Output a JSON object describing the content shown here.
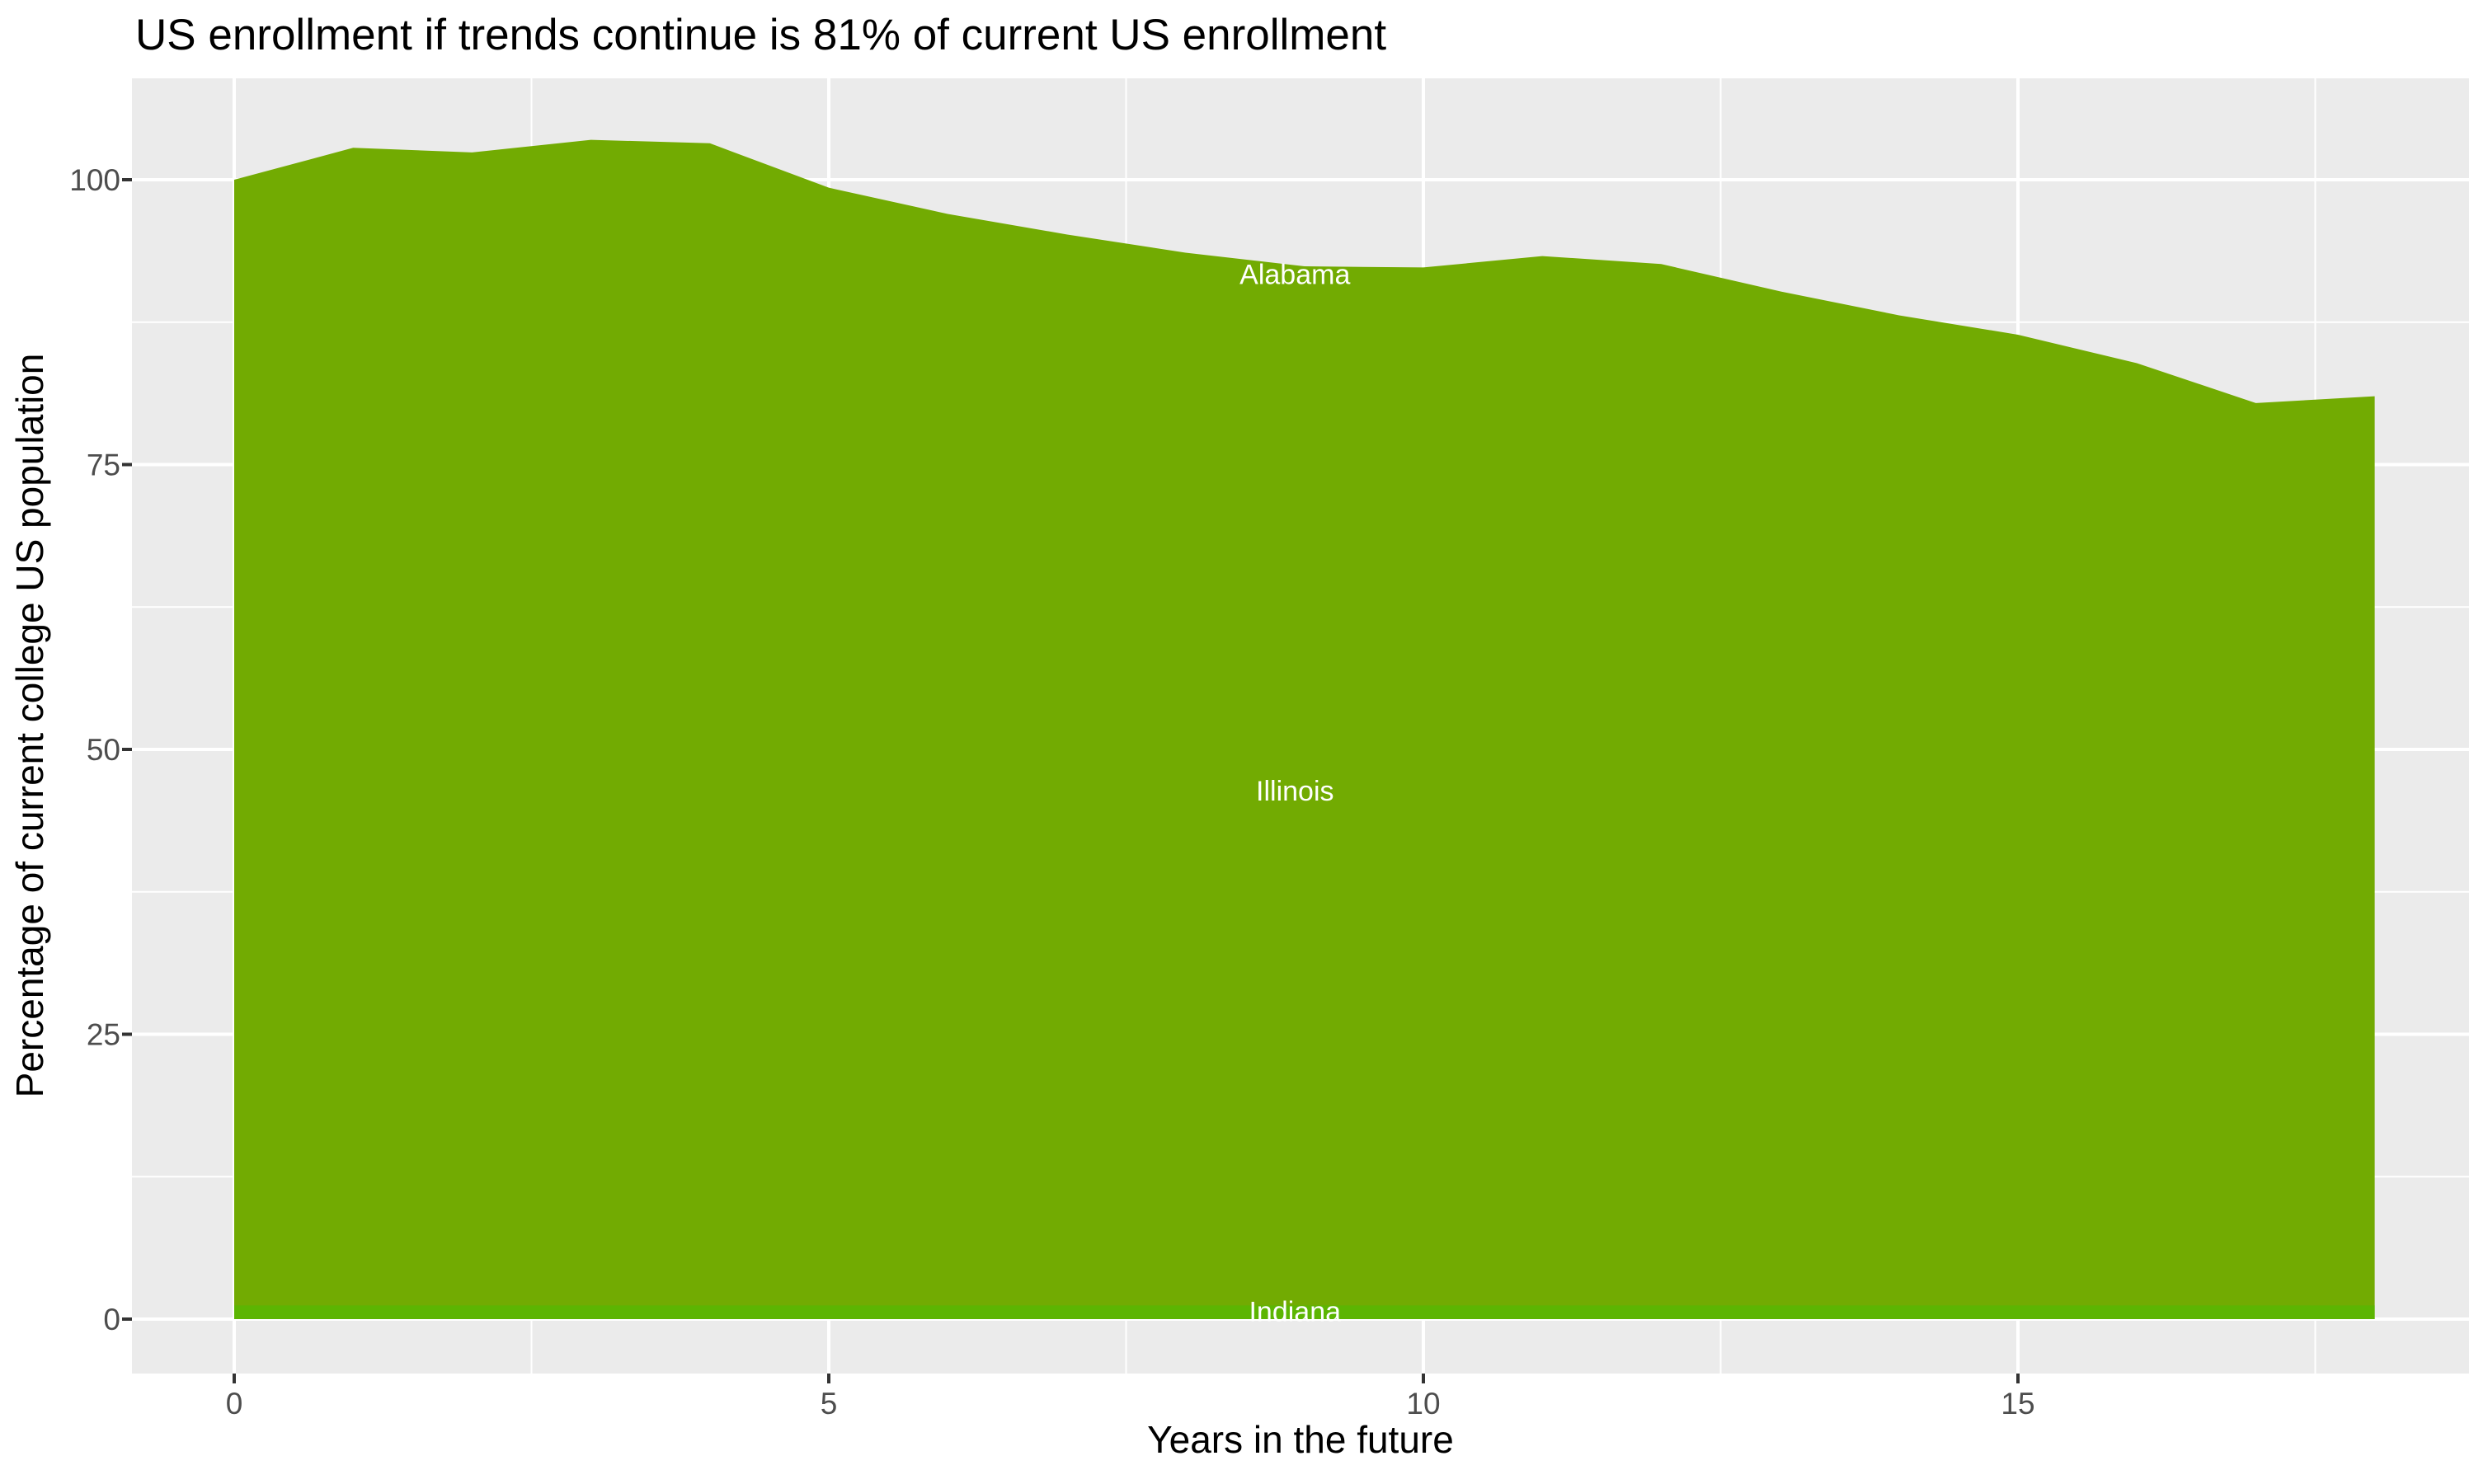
{
  "title": "US enrollment if trends continue is 81% of current US enrollment",
  "axes": {
    "x": {
      "title": "Years in the future",
      "major_ticks": [
        0,
        5,
        10,
        15
      ],
      "minor_ticks": [
        2.5,
        7.5,
        12.5,
        17.5
      ],
      "range": [
        -0.9,
        18.8
      ]
    },
    "y": {
      "title": "Percentage of current college US population",
      "major_ticks": [
        0,
        25,
        50,
        75,
        100
      ],
      "minor_ticks": [
        12.5,
        37.5,
        62.5,
        87.5
      ],
      "range": [
        -4.5,
        107.7
      ]
    }
  },
  "chart_data": {
    "type": "area",
    "stacked": true,
    "grid": "on",
    "legend": "none",
    "x": [
      0,
      1,
      2,
      3,
      4,
      5,
      6,
      7,
      8,
      9,
      10,
      11,
      12,
      13,
      14,
      15,
      16,
      17,
      18
    ],
    "stack_top_total_pct": [
      100,
      102.8,
      102.4,
      103.5,
      103.2,
      99.3,
      97.0,
      95.2,
      93.6,
      92.4,
      92.3,
      93.3,
      92.6,
      90.2,
      88.1,
      86.4,
      83.9,
      80.4,
      81.0
    ],
    "series": [
      {
        "name": "Alabama",
        "stack_position": "top",
        "values_approx": [
          1.0,
          1.0,
          1.0,
          1.0,
          1.0,
          1.0,
          1.0,
          1.0,
          1.0,
          1.0,
          1.0,
          1.0,
          1.0,
          1.0,
          1.0,
          1.0,
          1.0,
          1.0,
          1.0
        ]
      },
      {
        "name": "Illinois",
        "stack_position": "middle",
        "values_approx": [
          97.8,
          100.6,
          100.2,
          101.3,
          101.0,
          97.1,
          94.8,
          93.0,
          91.4,
          90.2,
          90.1,
          91.1,
          90.4,
          88.0,
          85.9,
          84.2,
          81.7,
          78.2,
          78.8
        ]
      },
      {
        "name": "Indiana",
        "stack_position": "bottom",
        "values_approx": [
          1.2,
          1.2,
          1.2,
          1.2,
          1.2,
          1.2,
          1.2,
          1.2,
          1.2,
          1.2,
          1.2,
          1.2,
          1.2,
          1.2,
          1.2,
          1.2,
          1.2,
          1.2,
          1.2
        ]
      }
    ],
    "indiana_band_top": 1.2,
    "state_labels": [
      {
        "text": "Alabama",
        "x": 8.92,
        "y": 91.7
      },
      {
        "text": "Illinois",
        "x": 8.92,
        "y": 46.4
      },
      {
        "text": "Indiana",
        "x": 8.92,
        "y": 0.7
      }
    ],
    "colors": {
      "area_main": "#72AB02",
      "area_indiana_strip": "#5CB502",
      "state_label_text": "#FFFFFF",
      "panel_background": "#EBEBEB",
      "gridline": "#FFFFFF",
      "tick_mark": "#333333",
      "tick_label": "#4D4D4D",
      "title_text": "#000000"
    }
  }
}
